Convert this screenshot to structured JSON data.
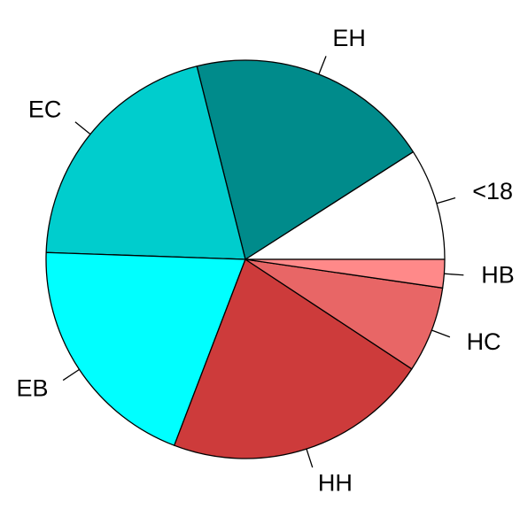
{
  "chart_data": {
    "type": "pie",
    "start_angle_deg": 0,
    "direction": "counterclockwise",
    "slices": [
      {
        "label": "<18",
        "value": 9.1,
        "color": "#ffffff"
      },
      {
        "label": "EH",
        "value": 19.9,
        "color": "#008b8b"
      },
      {
        "label": "EC",
        "value": 20.6,
        "color": "#00cdcd"
      },
      {
        "label": "EB",
        "value": 19.8,
        "color": "#00ffff"
      },
      {
        "label": "HH",
        "value": 21.6,
        "color": "#cd3b3b"
      },
      {
        "label": "HC",
        "value": 7.0,
        "color": "#e86666"
      },
      {
        "label": "HB",
        "value": 2.3,
        "color": "#ff8989"
      }
    ]
  }
}
